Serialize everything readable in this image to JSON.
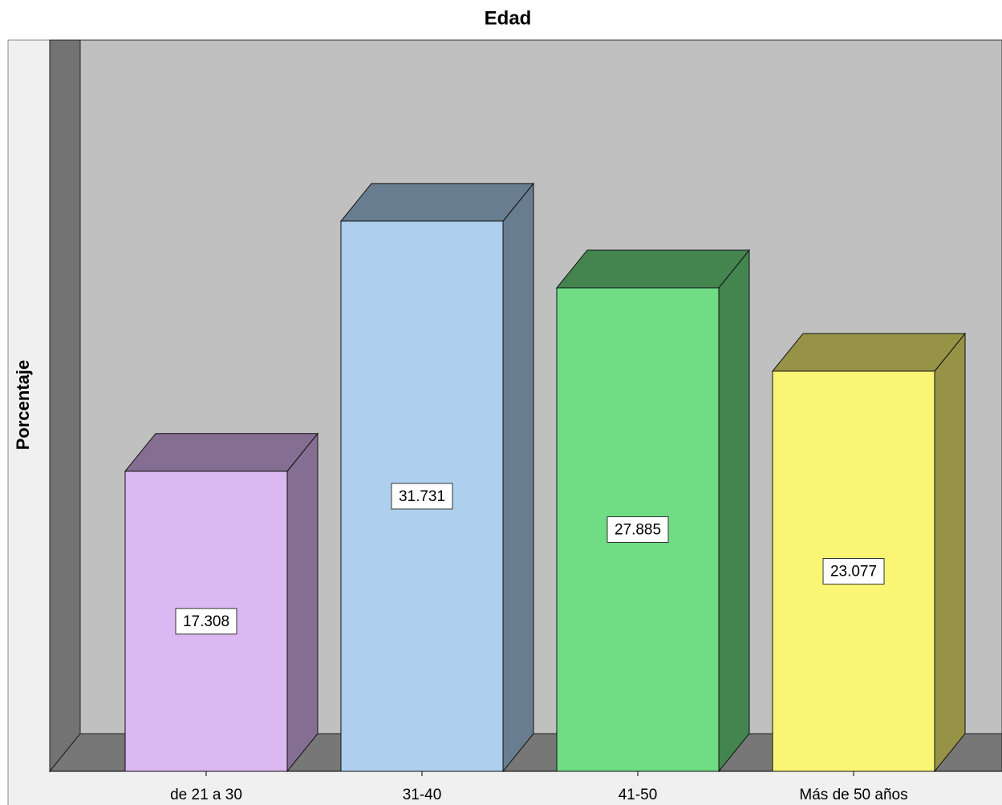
{
  "chart_data": {
    "type": "bar3d",
    "title": "Edad",
    "y_label": "Porcentaje",
    "categories": [
      "de 21 a 30",
      "31-40",
      "41-50",
      "Más de 50 años"
    ],
    "values": [
      17.308,
      31.731,
      27.885,
      23.077
    ],
    "colors": [
      "#dcb8f2",
      "#aed0ee",
      "#70dc84",
      "#faf574"
    ],
    "ylim": [
      0,
      40
    ]
  }
}
